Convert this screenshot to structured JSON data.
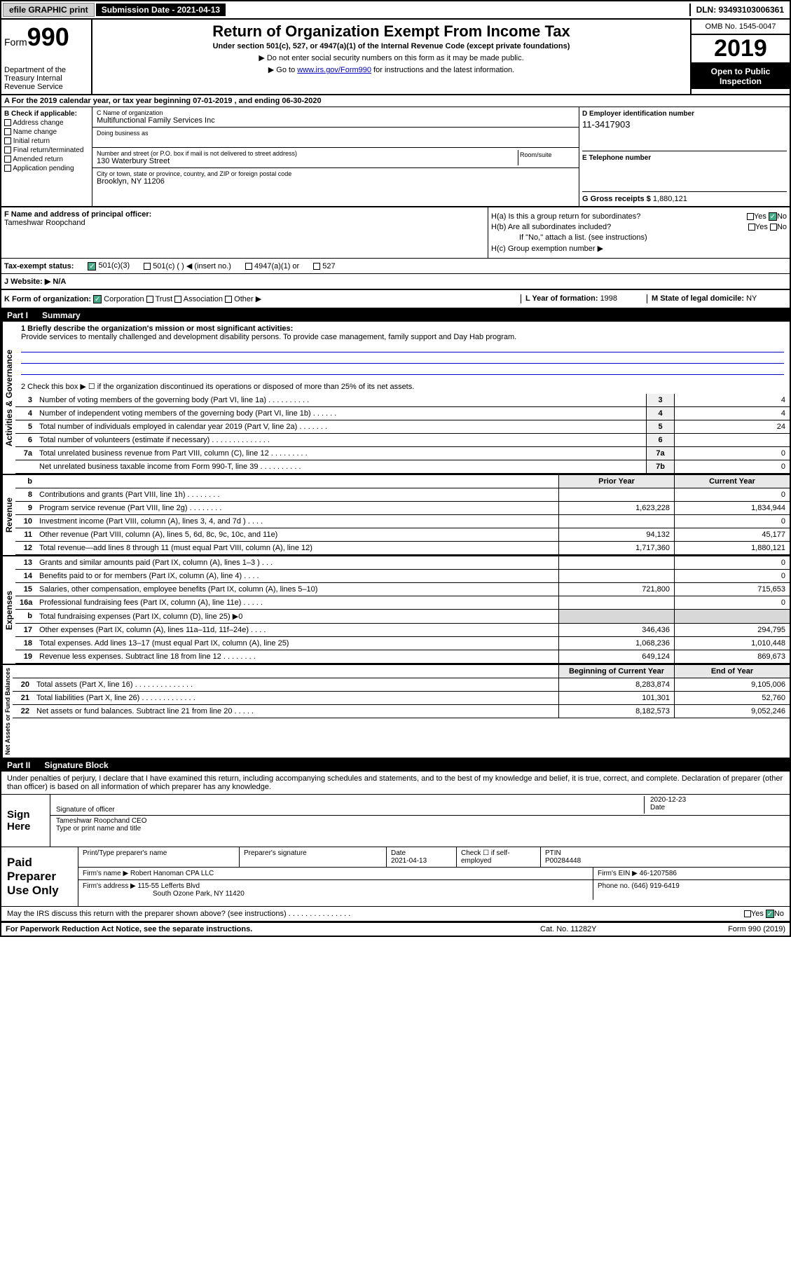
{
  "top": {
    "efile": "efile GRAPHIC print",
    "submission": "Submission Date - 2021-04-13",
    "dln": "DLN: 93493103006361"
  },
  "header": {
    "form_prefix": "Form",
    "form_num": "990",
    "dept": "Department of the Treasury\nInternal Revenue Service",
    "title": "Return of Organization Exempt From Income Tax",
    "subtitle": "Under section 501(c), 527, or 4947(a)(1) of the Internal Revenue Code (except private foundations)",
    "note1": "▶ Do not enter social security numbers on this form as it may be made public.",
    "note2_pre": "▶ Go to ",
    "note2_link": "www.irs.gov/Form990",
    "note2_post": " for instructions and the latest information.",
    "omb": "OMB No. 1545-0047",
    "year": "2019",
    "inspect": "Open to Public Inspection"
  },
  "period": "A For the 2019 calendar year, or tax year beginning 07-01-2019   , and ending 06-30-2020",
  "box_b": {
    "title": "B Check if applicable:",
    "items": [
      "Address change",
      "Name change",
      "Initial return",
      "Final return/terminated",
      "Amended return",
      "Application pending"
    ]
  },
  "box_c": {
    "name_label": "C Name of organization",
    "name": "Multifunctional Family Services Inc",
    "dba_label": "Doing business as",
    "street_label": "Number and street (or P.O. box if mail is not delivered to street address)",
    "room_label": "Room/suite",
    "street": "130 Waterbury Street",
    "city_label": "City or town, state or province, country, and ZIP or foreign postal code",
    "city": "Brooklyn, NY  11206"
  },
  "box_d": {
    "label": "D Employer identification number",
    "ein": "11-3417903",
    "tel_label": "E Telephone number",
    "gross_label": "G Gross receipts $ ",
    "gross": "1,880,121"
  },
  "box_f": {
    "label": "F  Name and address of principal officer:",
    "name": "Tameshwar Roopchand"
  },
  "box_h": {
    "a": "H(a)  Is this a group return for subordinates?",
    "b": "H(b)  Are all subordinates included?",
    "b_note": "If \"No,\" attach a list. (see instructions)",
    "c": "H(c)  Group exemption number ▶",
    "yes": "Yes",
    "no": "No"
  },
  "tax_status": {
    "label": "Tax-exempt status:",
    "opt1": "501(c)(3)",
    "opt2": "501(c) (   ) ◀ (insert no.)",
    "opt3": "4947(a)(1) or",
    "opt4": "527"
  },
  "website": {
    "label": "J   Website: ▶",
    "val": "N/A"
  },
  "box_k": {
    "label": "K Form of organization:",
    "corp": "Corporation",
    "trust": "Trust",
    "assoc": "Association",
    "other": "Other ▶"
  },
  "box_l": {
    "label": "L Year of formation: ",
    "val": "1998"
  },
  "box_m": {
    "label": "M State of legal domicile: ",
    "val": "NY"
  },
  "part1": {
    "num": "Part I",
    "title": "Summary"
  },
  "mission": {
    "label": "1   Briefly describe the organization's mission or most significant activities:",
    "text": "Provide services to mentally challenged and development disability persons. To provide case management, family support and Day Hab program."
  },
  "line2": "2   Check this box ▶ ☐  if the organization discontinued its operations or disposed of more than 25% of its net assets.",
  "gov_lines": [
    {
      "n": "3",
      "t": "Number of voting members of the governing body (Part VI, line 1a)   .   .   .   .   .   .   .   .   .   .",
      "b": "3",
      "v": "4"
    },
    {
      "n": "4",
      "t": "Number of independent voting members of the governing body (Part VI, line 1b)   .   .   .   .   .   .",
      "b": "4",
      "v": "4"
    },
    {
      "n": "5",
      "t": "Total number of individuals employed in calendar year 2019 (Part V, line 2a)   .   .   .   .   .   .   .",
      "b": "5",
      "v": "24"
    },
    {
      "n": "6",
      "t": "Total number of volunteers (estimate if necessary)   .   .   .   .   .   .   .   .   .   .   .   .   .   .",
      "b": "6",
      "v": ""
    },
    {
      "n": "7a",
      "t": "Total unrelated business revenue from Part VIII, column (C), line 12   .   .   .   .   .   .   .   .   .",
      "b": "7a",
      "v": "0"
    },
    {
      "n": "",
      "t": "Net unrelated business taxable income from Form 990-T, line 39   .   .   .   .   .   .   .   .   .   .",
      "b": "7b",
      "v": "0"
    }
  ],
  "col_headers": {
    "prior": "Prior Year",
    "curr": "Current Year"
  },
  "rev_lines": [
    {
      "n": "8",
      "t": "Contributions and grants (Part VIII, line 1h)   .   .   .   .   .   .   .   .",
      "p": "",
      "c": "0"
    },
    {
      "n": "9",
      "t": "Program service revenue (Part VIII, line 2g)   .   .   .   .   .   .   .   .",
      "p": "1,623,228",
      "c": "1,834,944"
    },
    {
      "n": "10",
      "t": "Investment income (Part VIII, column (A), lines 3, 4, and 7d )   .   .   .   .",
      "p": "",
      "c": "0"
    },
    {
      "n": "11",
      "t": "Other revenue (Part VIII, column (A), lines 5, 6d, 8c, 9c, 10c, and 11e)",
      "p": "94,132",
      "c": "45,177"
    },
    {
      "n": "12",
      "t": "Total revenue—add lines 8 through 11 (must equal Part VIII, column (A), line 12)",
      "p": "1,717,360",
      "c": "1,880,121"
    }
  ],
  "exp_lines": [
    {
      "n": "13",
      "t": "Grants and similar amounts paid (Part IX, column (A), lines 1–3 )   .   .   .",
      "p": "",
      "c": "0"
    },
    {
      "n": "14",
      "t": "Benefits paid to or for members (Part IX, column (A), line 4)   .   .   .   .",
      "p": "",
      "c": "0"
    },
    {
      "n": "15",
      "t": "Salaries, other compensation, employee benefits (Part IX, column (A), lines 5–10)",
      "p": "721,800",
      "c": "715,653"
    },
    {
      "n": "16a",
      "t": "Professional fundraising fees (Part IX, column (A), line 11e)   .   .   .   .   .",
      "p": "",
      "c": "0"
    },
    {
      "n": "b",
      "t": "Total fundraising expenses (Part IX, column (D), line 25) ▶0",
      "p": "shaded",
      "c": "shaded"
    },
    {
      "n": "17",
      "t": "Other expenses (Part IX, column (A), lines 11a–11d, 11f–24e)   .   .   .   .",
      "p": "346,436",
      "c": "294,795"
    },
    {
      "n": "18",
      "t": "Total expenses. Add lines 13–17 (must equal Part IX, column (A), line 25)",
      "p": "1,068,236",
      "c": "1,010,448"
    },
    {
      "n": "19",
      "t": "Revenue less expenses. Subtract line 18 from line 12   .   .   .   .   .   .   .   .",
      "p": "649,124",
      "c": "869,673"
    }
  ],
  "net_headers": {
    "prior": "Beginning of Current Year",
    "curr": "End of Year"
  },
  "net_lines": [
    {
      "n": "20",
      "t": "Total assets (Part X, line 16)   .   .   .   .   .   .   .   .   .   .   .   .   .   .",
      "p": "8,283,874",
      "c": "9,105,006"
    },
    {
      "n": "21",
      "t": "Total liabilities (Part X, line 26)   .   .   .   .   .   .   .   .   .   .   .   .   .",
      "p": "101,301",
      "c": "52,760"
    },
    {
      "n": "22",
      "t": "Net assets or fund balances. Subtract line 21 from line 20   .   .   .   .   .",
      "p": "8,182,573",
      "c": "9,052,246"
    }
  ],
  "side_labels": {
    "gov": "Activities & Governance",
    "rev": "Revenue",
    "exp": "Expenses",
    "net": "Net Assets or Fund Balances"
  },
  "part2": {
    "num": "Part II",
    "title": "Signature Block"
  },
  "sig": {
    "decl": "Under penalties of perjury, I declare that I have examined this return, including accompanying schedules and statements, and to the best of my knowledge and belief, it is true, correct, and complete. Declaration of preparer (other than officer) is based on all information of which preparer has any knowledge.",
    "sign_here": "Sign Here",
    "sig_officer": "Signature of officer",
    "date": "2020-12-23",
    "date_label": "Date",
    "officer_name": "Tameshwar Roopchand  CEO",
    "type_label": "Type or print name and title"
  },
  "prep": {
    "label": "Paid Preparer Use Only",
    "name_label": "Print/Type preparer's name",
    "sig_label": "Preparer's signature",
    "date_label": "Date",
    "date": "2021-04-13",
    "check_label": "Check ☐ if self-employed",
    "ptin_label": "PTIN",
    "ptin": "P00284448",
    "firm_name_label": "Firm's name    ▶",
    "firm_name": "Robert Hanoman CPA LLC",
    "firm_ein_label": "Firm's EIN ▶",
    "firm_ein": "46-1207586",
    "firm_addr_label": "Firm's address ▶",
    "firm_addr1": "115-55 Lefferts Blvd",
    "firm_addr2": "South Ozone Park, NY  11420",
    "phone_label": "Phone no.",
    "phone": "(646) 919-6419",
    "discuss": "May the IRS discuss this return with the preparer shown above? (see instructions)   .   .   .   .   .   .   .   .   .   .   .   .   .   .   ."
  },
  "footer": {
    "left": "For Paperwork Reduction Act Notice, see the separate instructions.",
    "mid": "Cat. No. 11282Y",
    "right": "Form 990 (2019)"
  }
}
